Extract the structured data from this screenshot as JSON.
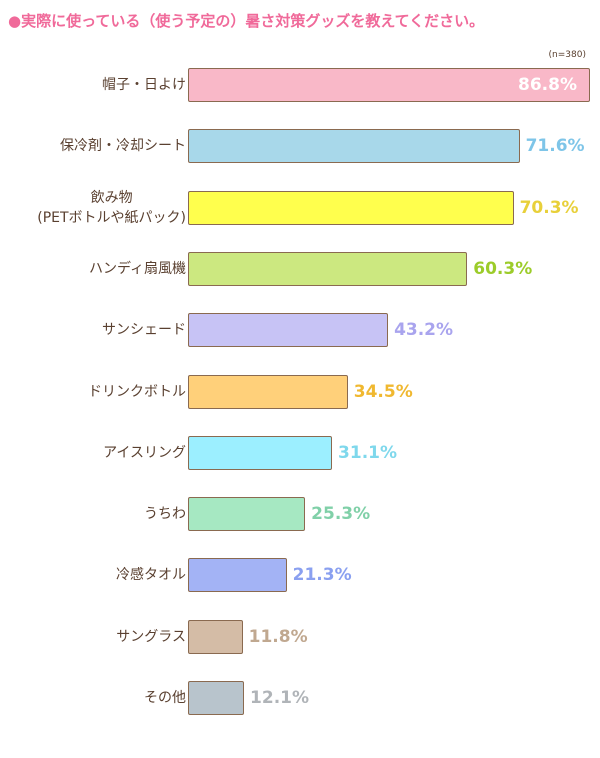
{
  "chart_data": {
    "type": "bar",
    "orientation": "horizontal",
    "title": "●実際に使っている（使う予定の）暑さ対策グッズを教えてください。",
    "note": "(n=380)",
    "categories": [
      "帽子・日よけ",
      "保冷剤・冷却シート",
      "飲み物\n(PETボトルや紙パック)",
      "ハンディ扇風機",
      "サンシェード",
      "ドリンクボトル",
      "アイスリング",
      "うちわ",
      "冷感タオル",
      "サングラス",
      "その他"
    ],
    "values": [
      86.8,
      71.6,
      70.3,
      60.3,
      43.2,
      34.5,
      31.1,
      25.3,
      21.3,
      11.8,
      12.1
    ],
    "value_labels": [
      "86.8%",
      "71.6%",
      "70.3%",
      "60.3%",
      "43.2%",
      "34.5%",
      "31.1%",
      "25.3%",
      "21.3%",
      "11.8%",
      "12.1%"
    ],
    "colors": [
      "#f9b8c8",
      "#a8d8ea",
      "#ffff4d",
      "#cce880",
      "#c7c3f5",
      "#ffd07a",
      "#9cefff",
      "#a6e8c2",
      "#a3b3f5",
      "#d4bca6",
      "#b8c4cc"
    ],
    "label_colors": [
      "#ffffff",
      "#7ec5e8",
      "#e8d03a",
      "#9ccc2a",
      "#a9a4ee",
      "#f0b830",
      "#7fd8ec",
      "#80d0a8",
      "#8aa0f0",
      "#c0a890",
      "#b0b4b8"
    ]
  }
}
